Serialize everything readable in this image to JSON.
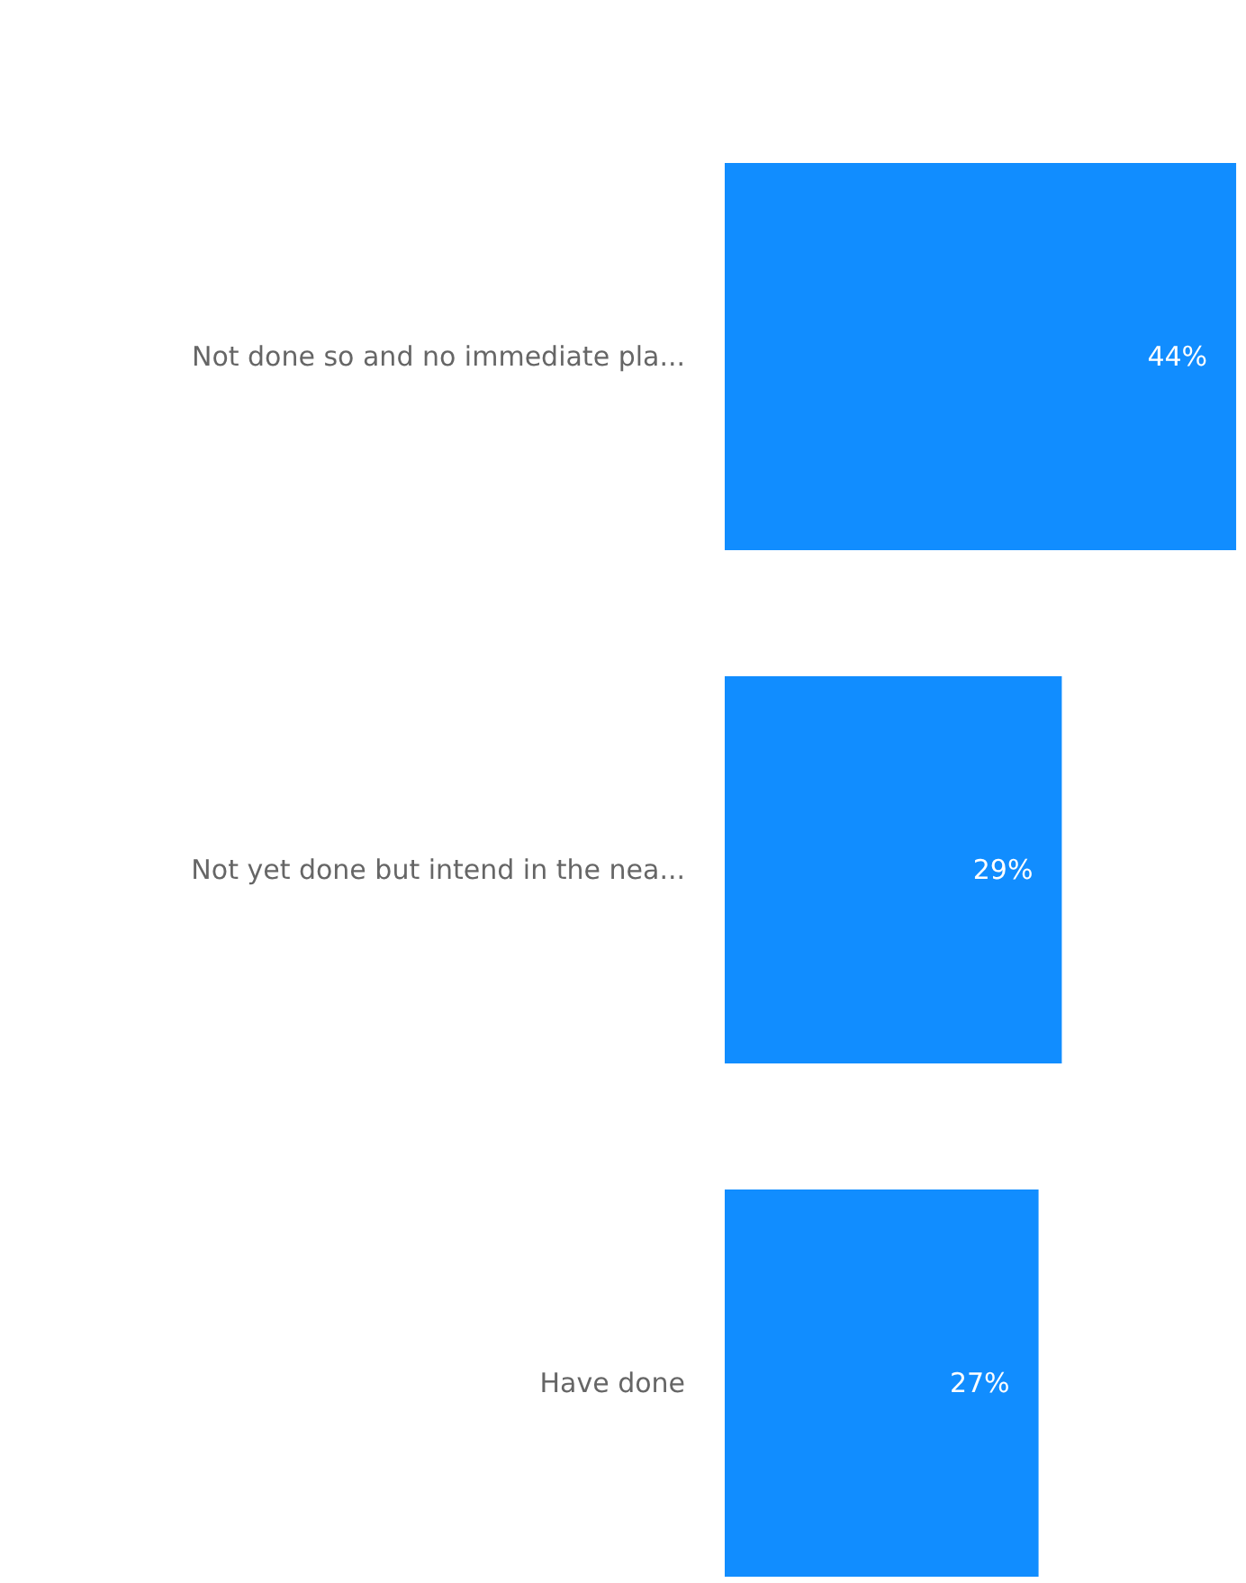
{
  "chart_data": {
    "type": "bar",
    "orientation": "horizontal",
    "categories": [
      "Not done so and no immediate pla...",
      "Not yet done but intend in the nea...",
      "Have done"
    ],
    "values": [
      44,
      29,
      27
    ],
    "value_labels": [
      "44%",
      "29%",
      "27%"
    ],
    "color": "#118dff"
  }
}
